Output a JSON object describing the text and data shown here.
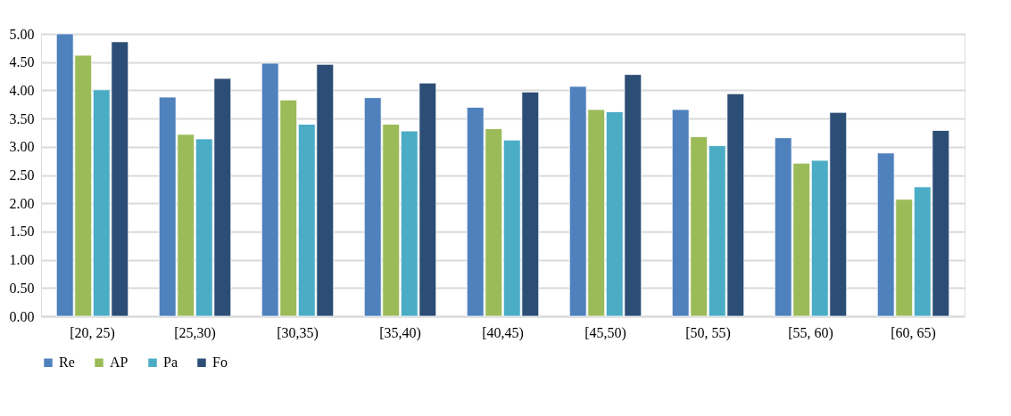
{
  "chart_data": {
    "type": "bar",
    "categories": [
      "[20, 25)",
      "[25,30)",
      "[30,35)",
      "[35,40)",
      "[40,45)",
      "[45,50)",
      "[50, 55)",
      "[55, 60)",
      "[60, 65)"
    ],
    "series": [
      {
        "name": "Re",
        "color": "#4f81bd",
        "values": [
          5.0,
          3.88,
          4.48,
          3.87,
          3.7,
          4.07,
          3.66,
          3.16,
          2.89
        ]
      },
      {
        "name": "AP",
        "color": "#9bbb59",
        "values": [
          4.62,
          3.22,
          3.83,
          3.4,
          3.32,
          3.66,
          3.18,
          2.71,
          2.07
        ]
      },
      {
        "name": "Pa",
        "color": "#4bacc6",
        "values": [
          4.01,
          3.14,
          3.4,
          3.28,
          3.12,
          3.62,
          3.02,
          2.76,
          2.29
        ]
      },
      {
        "name": "Fo",
        "color": "#2c4d75",
        "values": [
          4.86,
          4.21,
          4.46,
          4.13,
          3.97,
          4.28,
          3.94,
          3.61,
          3.29
        ]
      }
    ],
    "ylim": [
      0,
      5
    ],
    "yticks": [
      {
        "value": 0,
        "label": "0.00"
      },
      {
        "value": 0.5,
        "label": "0.50"
      },
      {
        "value": 1,
        "label": "1.00"
      },
      {
        "value": 1.5,
        "label": "1.50"
      },
      {
        "value": 2,
        "label": "2.00"
      },
      {
        "value": 2.5,
        "label": "2.50"
      },
      {
        "value": 3,
        "label": "3.00"
      },
      {
        "value": 3.5,
        "label": "3.50"
      },
      {
        "value": 4,
        "label": "4.00"
      },
      {
        "value": 4.5,
        "label": "4.50"
      },
      {
        "value": 5,
        "label": "5.00"
      }
    ],
    "grid": "y",
    "legend": "bottom"
  }
}
